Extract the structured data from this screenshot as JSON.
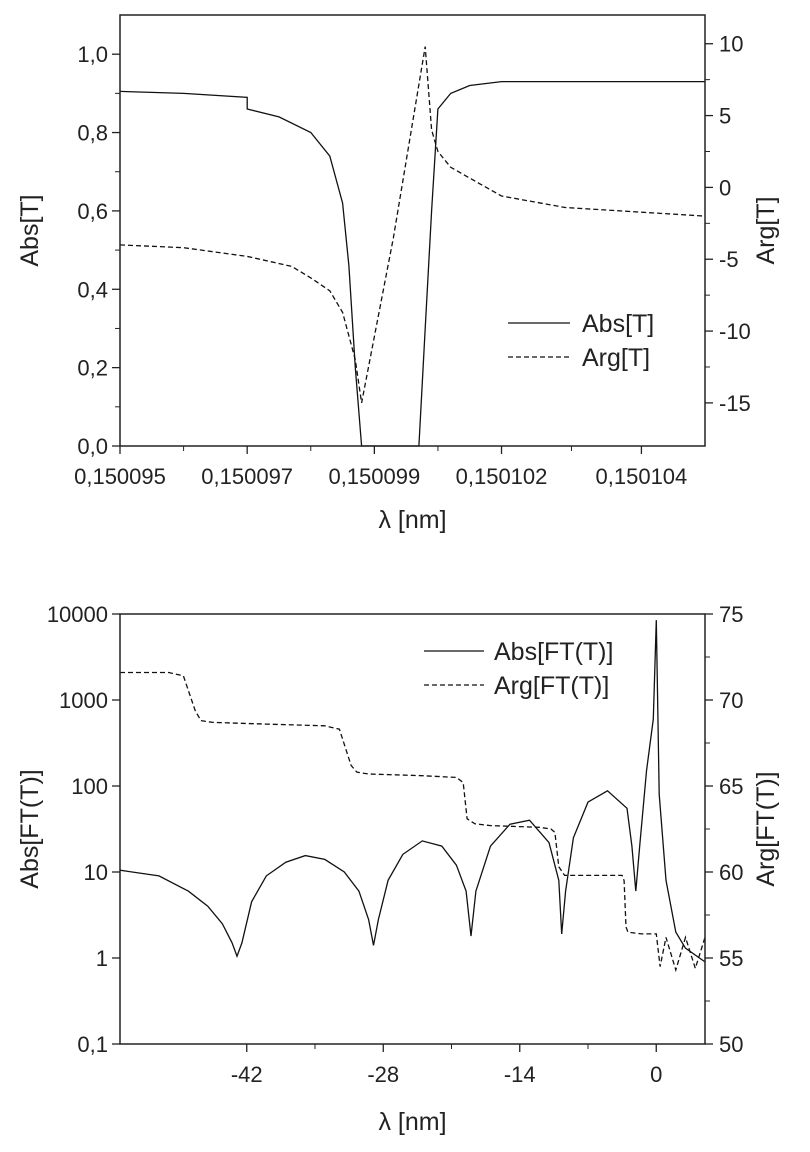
{
  "chart_data": [
    {
      "type": "line",
      "xlabel": "λ [nm]",
      "ylabel": "Abs[T]",
      "y2label": "Arg[T]",
      "x_ticks": [
        "0,150095",
        "0,150097",
        "0,150099",
        "0,150102",
        "0,150104"
      ],
      "y_ticks": [
        "0,0",
        "0,2",
        "0,4",
        "0,6",
        "0,8",
        "1,0"
      ],
      "y2_ticks": [
        "-15",
        "-10",
        "-5",
        "0",
        "5",
        "10"
      ],
      "xlim": [
        0.150095,
        0.1501042
      ],
      "ylim": [
        0,
        1.1
      ],
      "y2lim": [
        -18,
        12
      ],
      "legend_position": "lower-right",
      "series": [
        {
          "name": "Abs[T]",
          "style": "solid",
          "axis": "left",
          "x": [
            0.150095,
            0.150096,
            0.150097,
            0.150097,
            0.1500975,
            0.150098,
            0.1500983,
            0.1500985,
            0.1500986,
            0.1500987,
            0.1500988,
            0.1500995,
            0.1500997,
            0.1500998,
            0.1500999,
            0.1501,
            0.1501002,
            0.1501005,
            0.150101,
            0.150102,
            0.1501042
          ],
          "y": [
            0.905,
            0.9,
            0.89,
            0.86,
            0.84,
            0.8,
            0.74,
            0.62,
            0.46,
            0.2,
            0.0,
            0.0,
            0.0,
            0.3,
            0.6,
            0.86,
            0.9,
            0.92,
            0.93,
            0.93,
            0.93
          ]
        },
        {
          "name": "Arg[T]",
          "style": "dashed",
          "axis": "right",
          "x": [
            0.150095,
            0.150096,
            0.150097,
            0.1500977,
            0.150098,
            0.1500983,
            0.1500985,
            0.1500987,
            0.1500988,
            0.1500993,
            0.1500998,
            0.1500999,
            0.1501,
            0.1501002,
            0.1501006,
            0.150101,
            0.150102,
            0.1501042
          ],
          "y": [
            -4.0,
            -4.2,
            -4.8,
            -5.5,
            -6.3,
            -7.2,
            -8.7,
            -12.0,
            -15.0,
            -3.5,
            9.8,
            4.0,
            2.5,
            1.4,
            0.4,
            -0.6,
            -1.4,
            -2.0
          ]
        }
      ]
    },
    {
      "type": "line",
      "xlabel": "λ [nm]",
      "ylabel": "Abs[FT(T)]",
      "y2label": "Arg[FT(T)]",
      "x_ticks": [
        "-42",
        "-28",
        "-14",
        "0"
      ],
      "y_ticks": [
        "0,1",
        "1",
        "10",
        "100",
        "1000",
        "10000"
      ],
      "y2_ticks": [
        "50",
        "55",
        "60",
        "65",
        "70",
        "75"
      ],
      "xlim": [
        -55,
        5
      ],
      "ylim": [
        0.1,
        10000
      ],
      "y_scale": "log",
      "y2lim": [
        50,
        75
      ],
      "legend_position": "top-right",
      "series": [
        {
          "name": "Abs[FT(T)]",
          "style": "solid",
          "axis": "left",
          "x": [
            -55,
            -51,
            -48,
            -46,
            -44.5,
            -43.5,
            -43,
            -42.5,
            -41.5,
            -40,
            -38,
            -36,
            -34,
            -32,
            -30.5,
            -29.5,
            -29,
            -28.5,
            -27.5,
            -26,
            -24,
            -22,
            -20.5,
            -19.5,
            -19,
            -18.5,
            -17,
            -15,
            -13,
            -11,
            -10,
            -9.7,
            -9.3,
            -8.5,
            -7,
            -5,
            -3,
            -2.5,
            -2.1,
            -1.7,
            -1,
            -0.3,
            0,
            0.3,
            1,
            2,
            3,
            5
          ],
          "y": [
            10.5,
            9,
            6,
            4,
            2.5,
            1.5,
            1.05,
            1.5,
            4.5,
            9,
            13,
            15.5,
            14,
            10,
            6,
            2.8,
            1.4,
            2.8,
            8,
            16,
            23,
            20,
            12,
            6,
            1.8,
            6,
            20,
            36,
            40,
            22,
            8,
            1.9,
            6,
            25,
            65,
            88,
            55,
            20,
            6,
            20,
            150,
            600,
            8500,
            80,
            8,
            2,
            1.3,
            0.9
          ]
        },
        {
          "name": "Arg[FT(T)]",
          "style": "dashed",
          "axis": "right",
          "x": [
            -55,
            -50,
            -48.5,
            -47.3,
            -46.7,
            -45.5,
            -40,
            -34,
            -32.5,
            -31.3,
            -30.7,
            -29.5,
            -24,
            -20.5,
            -19.8,
            -19.4,
            -18.6,
            -17,
            -12,
            -10.8,
            -10.4,
            -10,
            -9.4,
            -7,
            -3.5,
            -3.3,
            -3.1,
            -2.9,
            -1.5,
            0,
            0.4,
            1,
            2,
            3,
            4,
            5
          ],
          "y": [
            71.6,
            71.6,
            71.4,
            69.4,
            68.8,
            68.7,
            68.6,
            68.5,
            68.3,
            66.2,
            65.8,
            65.7,
            65.6,
            65.5,
            65.2,
            63.1,
            62.8,
            62.7,
            62.6,
            62.5,
            62.3,
            60.3,
            59.8,
            59.8,
            59.8,
            59.5,
            56.8,
            56.5,
            56.4,
            56.4,
            54.5,
            56.2,
            54.3,
            56.2,
            54.4,
            56.2
          ]
        }
      ]
    }
  ]
}
